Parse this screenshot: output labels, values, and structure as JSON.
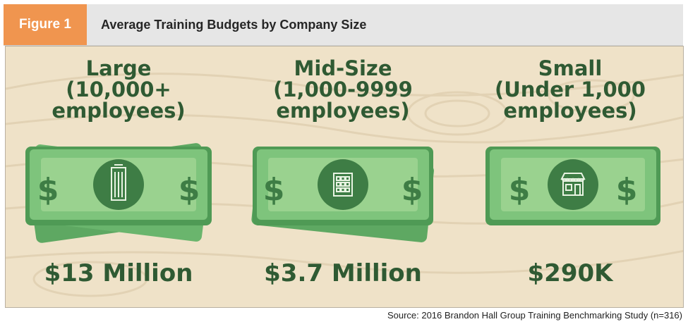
{
  "header": {
    "figure_label": "Figure 1",
    "title": "Average Training Budgets by Company Size"
  },
  "categories": [
    {
      "label_lines": [
        "Large",
        "(10,000+",
        "employees)"
      ],
      "amount": "$13 Million",
      "icon": "skyscraper-icon"
    },
    {
      "label_lines": [
        "Mid-Size",
        "(1,000-9999",
        "employees)"
      ],
      "amount": "$3.7 Million",
      "icon": "office-building-icon"
    },
    {
      "label_lines": [
        "Small",
        "(Under 1,000",
        "employees)"
      ],
      "amount": "$290K",
      "icon": "storefront-icon"
    }
  ],
  "bill_symbol": "$",
  "source": "Source: 2016 Brandon Hall Group Training Benchmarking Study (n=316)",
  "colors": {
    "accent_orange": "#f0954f",
    "background_tan": "#efe2c8",
    "bill_green": "#7ec47c",
    "bill_dark": "#4f9a55",
    "text_green": "#2f5a33"
  }
}
